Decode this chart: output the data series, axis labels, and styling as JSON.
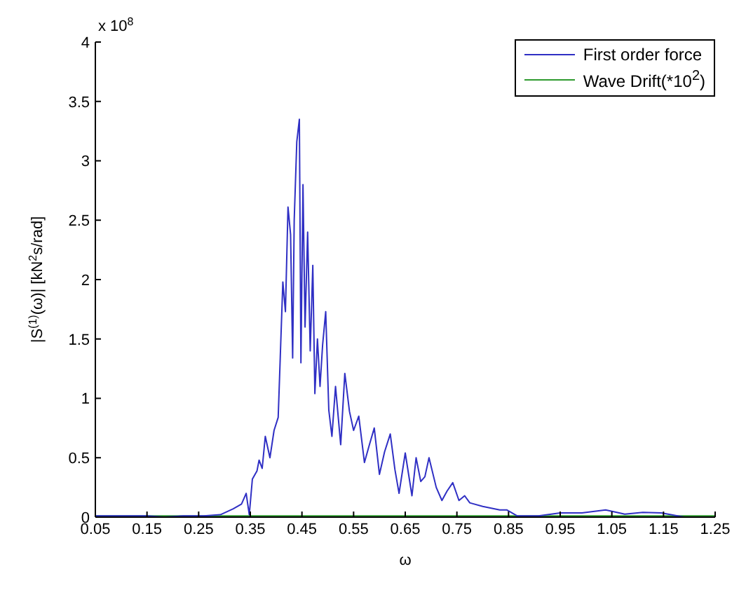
{
  "chart_data": {
    "type": "line",
    "xlabel": "ω",
    "ylabel": "|S$^{(1)}$(ω)| [kN$^{2}$s/rad]",
    "annotations": [
      "x 10$^{8}$"
    ],
    "xlim": [
      0.05,
      1.25
    ],
    "xticks": [
      0.05,
      0.15,
      0.25,
      0.35,
      0.45,
      0.55,
      0.65,
      0.75,
      0.85,
      0.95,
      1.05,
      1.15,
      1.25
    ],
    "ylim": [
      0,
      4
    ],
    "yticks": [
      0,
      0.5,
      1,
      1.5,
      2,
      2.5,
      3,
      3.5,
      4
    ],
    "grid": false,
    "legend": "top right",
    "marker": "none",
    "line_style": "solid",
    "series": [
      {
        "name": "First order force",
        "color": "#2f2fc4",
        "x": [
          0.05,
          0.1,
          0.15,
          0.183,
          0.22,
          0.26,
          0.292,
          0.317,
          0.333,
          0.342,
          0.348,
          0.354,
          0.363,
          0.367,
          0.373,
          0.379,
          0.388,
          0.396,
          0.404,
          0.413,
          0.418,
          0.423,
          0.428,
          0.432,
          0.435,
          0.44,
          0.445,
          0.448,
          0.452,
          0.456,
          0.461,
          0.466,
          0.471,
          0.475,
          0.48,
          0.485,
          0.49,
          0.496,
          0.502,
          0.508,
          0.515,
          0.525,
          0.533,
          0.542,
          0.55,
          0.56,
          0.571,
          0.58,
          0.59,
          0.6,
          0.61,
          0.621,
          0.63,
          0.638,
          0.65,
          0.663,
          0.671,
          0.68,
          0.688,
          0.696,
          0.71,
          0.721,
          0.731,
          0.742,
          0.754,
          0.765,
          0.775,
          0.8,
          0.833,
          0.847,
          0.867,
          0.908,
          0.95,
          0.992,
          1.038,
          1.075,
          1.11,
          1.146,
          1.19,
          1.25
        ],
        "values": [
          0.01,
          0.01,
          0.01,
          0.0,
          0.01,
          0.01,
          0.02,
          0.07,
          0.11,
          0.2,
          0.02,
          0.32,
          0.39,
          0.48,
          0.41,
          0.68,
          0.5,
          0.73,
          0.84,
          1.98,
          1.73,
          2.61,
          2.38,
          1.34,
          2.5,
          3.16,
          3.35,
          1.3,
          2.8,
          1.6,
          2.4,
          1.4,
          2.12,
          1.04,
          1.5,
          1.1,
          1.45,
          1.73,
          0.9,
          0.68,
          1.1,
          0.61,
          1.21,
          0.89,
          0.73,
          0.85,
          0.46,
          0.6,
          0.75,
          0.36,
          0.55,
          0.7,
          0.4,
          0.2,
          0.54,
          0.18,
          0.5,
          0.3,
          0.34,
          0.5,
          0.25,
          0.14,
          0.22,
          0.29,
          0.14,
          0.18,
          0.12,
          0.09,
          0.06,
          0.06,
          0.01,
          0.01,
          0.035,
          0.035,
          0.06,
          0.025,
          0.04,
          0.035,
          0.0,
          0.0
        ]
      },
      {
        "name": "Wave Drift(*10$^{2}$)",
        "color": "#2e9a2e",
        "x": [
          0.05,
          0.35,
          0.45,
          0.65,
          0.85,
          1.05,
          1.25
        ],
        "values": [
          0.01,
          0.01,
          0.01,
          0.01,
          0.01,
          0.01,
          0.01
        ]
      }
    ]
  }
}
